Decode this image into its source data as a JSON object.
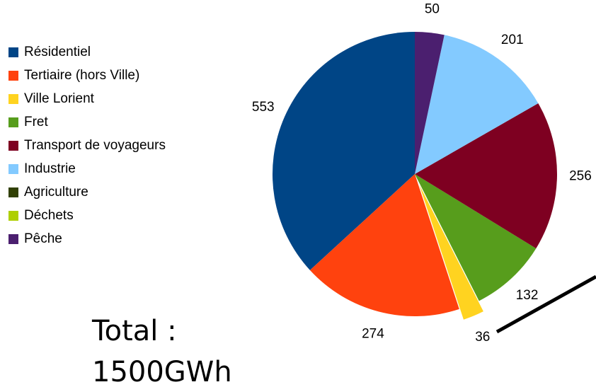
{
  "chart_data": {
    "type": "pie",
    "categories": [
      "Résidentiel",
      "Tertiaire (hors Ville)",
      "Ville Lorient",
      "Fret",
      "Transport de voyageurs",
      "Industrie",
      "Agriculture",
      "Déchets",
      "Pêche"
    ],
    "values": [
      553,
      274,
      36,
      132,
      256,
      201,
      0,
      0,
      50
    ],
    "colors": [
      "#004586",
      "#ff420e",
      "#ffd320",
      "#579d1c",
      "#7e0021",
      "#83caff",
      "#314004",
      "#aecf00",
      "#4b1f6f"
    ],
    "exploded": [
      "Ville Lorient"
    ],
    "legend": "left",
    "annotation": [
      "Total :",
      "1500GWh"
    ]
  }
}
